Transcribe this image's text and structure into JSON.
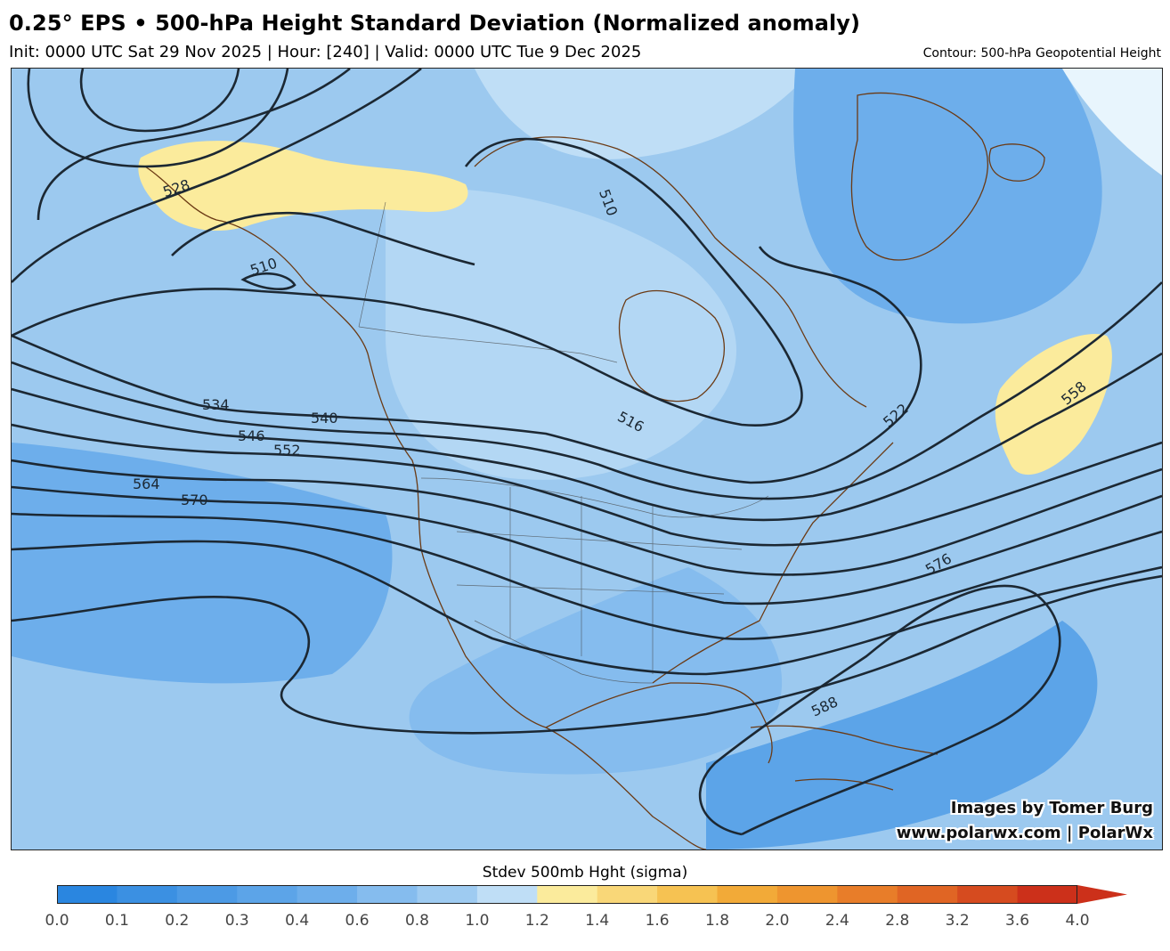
{
  "header": {
    "title": "0.25° EPS • 500-hPa Height Standard Deviation (Normalized anomaly)",
    "subtitle": "Init: 0000 UTC Sat 29 Nov 2025 | Hour: [240] | Valid: 0000 UTC Tue 9 Dec 2025",
    "contour_note": "Contour: 500-hPa Geopotential Height"
  },
  "map": {
    "region": "North America",
    "contour_labels": [
      "528",
      "510",
      "510",
      "534",
      "540",
      "546",
      "552",
      "564",
      "570",
      "516",
      "522",
      "558",
      "576",
      "588"
    ],
    "credit_line1": "Images by Tomer Burg",
    "credit_line2": "www.polarwx.com | PolarWx"
  },
  "colorbar": {
    "title": "Stdev 500mb Hght (sigma)",
    "ticks": [
      "0.0",
      "0.1",
      "0.2",
      "0.3",
      "0.4",
      "0.6",
      "0.8",
      "1.0",
      "1.2",
      "1.4",
      "1.6",
      "1.8",
      "2.0",
      "2.4",
      "2.8",
      "3.2",
      "3.6",
      "4.0"
    ],
    "colors": [
      "#2a86e0",
      "#3b90e2",
      "#4c9ae5",
      "#5ca4e8",
      "#6daeeb",
      "#85bcee",
      "#9ecbf1",
      "#bfdef6",
      "#fbeb9c",
      "#f9d778",
      "#f6c252",
      "#f2aa38",
      "#ee952f",
      "#e87d29",
      "#e06524",
      "#d64b1f",
      "#cc301a"
    ]
  }
}
